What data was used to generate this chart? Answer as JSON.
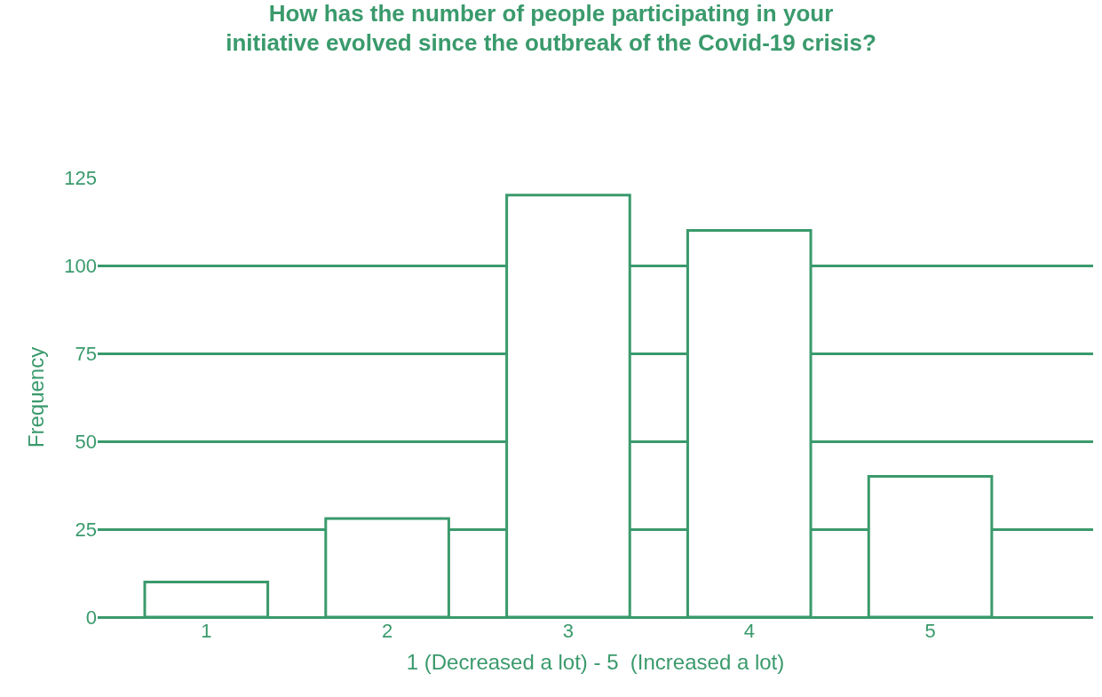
{
  "chart_data": {
    "type": "bar",
    "title": "How has the number of people participating in your\ninitiative evolved since the outbreak of the Covid-19 crisis?",
    "xlabel": "1 (Decreased a lot) - 5  (Increased a lot)",
    "ylabel": "Frequency",
    "categories": [
      "1",
      "2",
      "3",
      "4",
      "5"
    ],
    "values": [
      10,
      28,
      120,
      110,
      40
    ],
    "color": "#3a9a6c",
    "ylim": [
      0,
      125
    ],
    "yticks": [
      0,
      25,
      50,
      75,
      100,
      125
    ],
    "grid": "y"
  }
}
